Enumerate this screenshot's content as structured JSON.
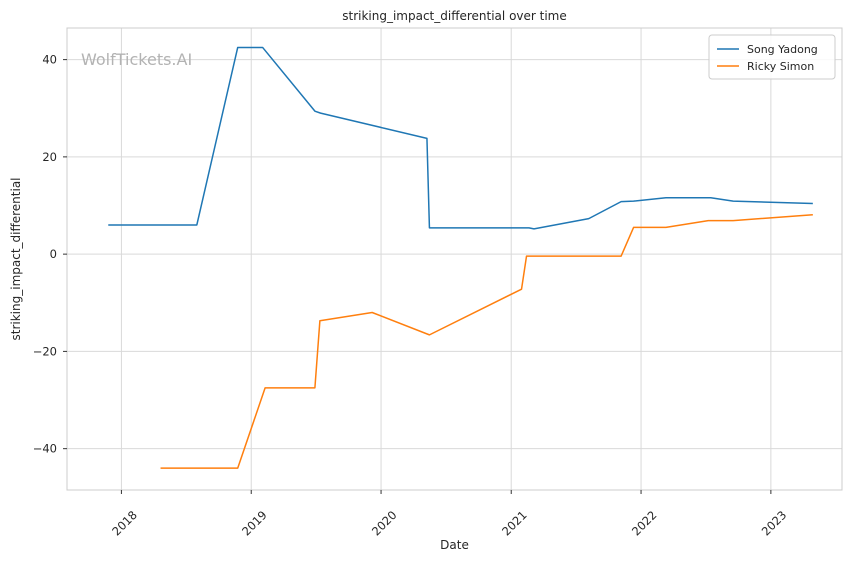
{
  "chart_data": {
    "type": "line",
    "title": "striking_impact_differential over time",
    "xlabel": "Date",
    "ylabel": "striking_impact_differential",
    "watermark": "WolfTickets.AI",
    "xlim": [
      "2017-08-01",
      "2023-07-20"
    ],
    "ylim": [
      -48.5,
      46.5
    ],
    "x_ticks": [
      "2018-01-01",
      "2019-01-01",
      "2020-01-01",
      "2021-01-01",
      "2022-01-01",
      "2023-01-01"
    ],
    "x_tick_labels": [
      "2018",
      "2019",
      "2020",
      "2021",
      "2022",
      "2023"
    ],
    "y_ticks": [
      -40,
      -20,
      0,
      20,
      40
    ],
    "y_tick_labels": [
      "−40",
      "−20",
      "0",
      "20",
      "40"
    ],
    "grid": true,
    "legend_position": "top-right",
    "series": [
      {
        "name": "Song Yadong",
        "color": "#1f77b4",
        "points": [
          [
            "2017-11-25",
            6.0
          ],
          [
            "2018-08-01",
            6.0
          ],
          [
            "2018-11-24",
            42.5
          ],
          [
            "2019-02-02",
            42.5
          ],
          [
            "2019-06-29",
            29.4
          ],
          [
            "2019-07-15",
            29.0
          ],
          [
            "2020-05-09",
            23.8
          ],
          [
            "2020-05-16",
            5.4
          ],
          [
            "2021-02-20",
            5.4
          ],
          [
            "2021-03-06",
            5.2
          ],
          [
            "2021-08-07",
            7.3
          ],
          [
            "2021-11-06",
            10.8
          ],
          [
            "2021-12-11",
            10.9
          ],
          [
            "2022-03-12",
            11.6
          ],
          [
            "2022-07-16",
            11.6
          ],
          [
            "2022-09-17",
            10.9
          ],
          [
            "2023-04-29",
            10.4
          ]
        ]
      },
      {
        "name": "Ricky Simon",
        "color": "#ff7f0e",
        "points": [
          [
            "2018-04-21",
            -44.0
          ],
          [
            "2018-11-24",
            -44.0
          ],
          [
            "2019-02-09",
            -27.5
          ],
          [
            "2019-06-29",
            -27.5
          ],
          [
            "2019-07-13",
            -13.7
          ],
          [
            "2019-12-07",
            -12.0
          ],
          [
            "2020-05-16",
            -16.6
          ],
          [
            "2021-01-30",
            -7.2
          ],
          [
            "2021-02-13",
            -0.4
          ],
          [
            "2021-11-06",
            -0.4
          ],
          [
            "2021-12-11",
            5.5
          ],
          [
            "2022-03-12",
            5.5
          ],
          [
            "2022-07-09",
            6.9
          ],
          [
            "2022-09-17",
            6.9
          ],
          [
            "2023-04-29",
            8.1
          ]
        ]
      }
    ]
  }
}
